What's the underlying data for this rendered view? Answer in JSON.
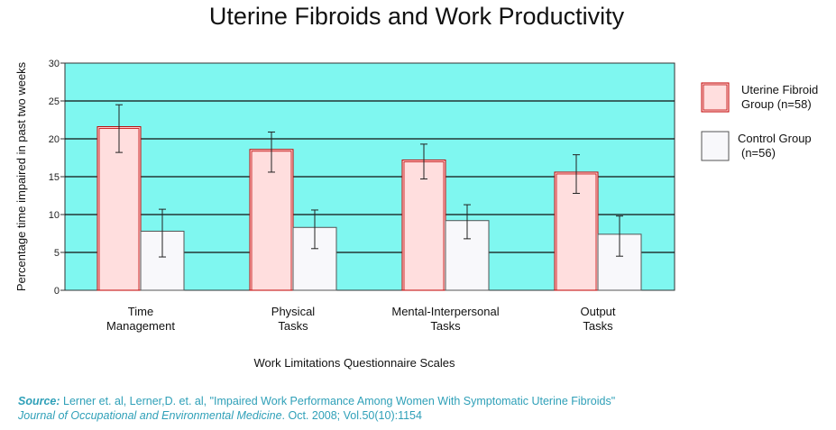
{
  "chart_data": {
    "type": "bar",
    "title": "Uterine Fibroids and Work Productivity",
    "xlabel": "Work Limitations Questionnaire Scales",
    "ylabel": "Percentage time impaired in past two weeks",
    "ylim": [
      0,
      30
    ],
    "yticks": [
      0,
      5,
      10,
      15,
      20,
      25,
      30
    ],
    "grid": true,
    "legend_position": "right",
    "categories": [
      [
        "Time",
        "Management"
      ],
      [
        "Physical",
        "Tasks"
      ],
      [
        "Mental-Interpersonal",
        "Tasks"
      ],
      [
        "Output",
        "Tasks"
      ]
    ],
    "series": [
      {
        "name": [
          "Uterine Fibroid",
          "Group (n=58)"
        ],
        "color": "#ffdede",
        "border": "#c00000",
        "values": [
          21.6,
          18.6,
          17.2,
          15.6
        ],
        "error_low": [
          18.2,
          15.6,
          14.7,
          12.8
        ],
        "error_high": [
          24.5,
          20.9,
          19.3,
          17.9
        ]
      },
      {
        "name": [
          "Control Group",
          "(n=56)"
        ],
        "color": "#f8f8fb",
        "border": "#555555",
        "values": [
          7.8,
          8.3,
          9.2,
          7.4
        ],
        "error_low": [
          4.4,
          5.5,
          6.8,
          4.5
        ],
        "error_high": [
          10.7,
          10.6,
          11.3,
          9.8
        ]
      }
    ],
    "plot_background": "#7ff7f0"
  },
  "source": {
    "label": "Source:",
    "text": " Lerner et. al, Lerner,D. et. al, \"Impaired Work Performance Among Women With Symptomatic Uterine Fibroids\"",
    "journal": "Journal of Occupational and Environmental Medicine",
    "citation": ". Oct. 2008; Vol.50(10):1154"
  }
}
